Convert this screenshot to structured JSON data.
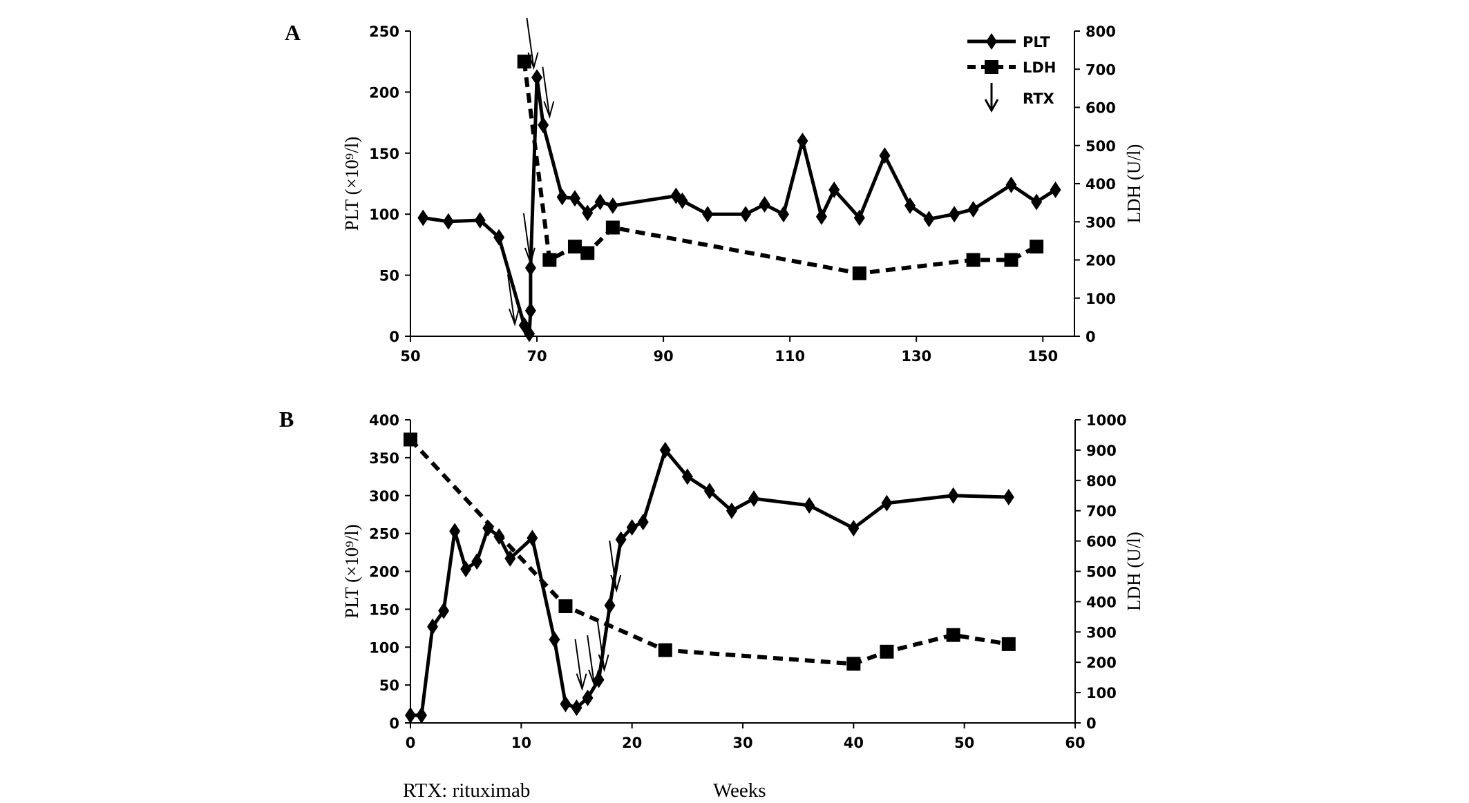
{
  "chart_data": [
    {
      "type": "line",
      "panel_label": "A",
      "ylabel": "PLT (×10⁹/l)",
      "y2label": "LDH (U/l)",
      "xlim": [
        50,
        155
      ],
      "xticks": [
        50,
        70,
        90,
        110,
        130,
        150
      ],
      "ylim": [
        0,
        250
      ],
      "yticks": [
        0,
        50,
        100,
        150,
        200,
        250
      ],
      "y2lim": [
        0,
        800
      ],
      "y2ticks": [
        0,
        100,
        200,
        300,
        400,
        500,
        600,
        700,
        800
      ],
      "legend": {
        "position": "top-right",
        "entries": [
          "PLT",
          "LDH",
          "RTX"
        ]
      },
      "series": [
        {
          "name": "PLT",
          "axis": "left",
          "style": "solid-diamond",
          "x": [
            52,
            56,
            61,
            64,
            68,
            68.8,
            69,
            69,
            70,
            71,
            74,
            76,
            78,
            80,
            82,
            92,
            93,
            97,
            103,
            106,
            109,
            112,
            115,
            117,
            121,
            125,
            129,
            132,
            136,
            139,
            145,
            149,
            152
          ],
          "y": [
            97,
            94,
            95,
            81,
            9,
            2,
            21,
            56,
            212,
            173,
            114,
            113,
            101,
            110,
            107,
            115,
            111,
            100,
            100,
            108,
            100,
            160,
            98,
            120,
            97,
            148,
            107,
            96,
            100,
            104,
            124,
            110,
            120
          ]
        },
        {
          "name": "LDH",
          "axis": "right",
          "style": "dashed-square",
          "x": [
            68,
            72,
            76,
            78,
            82,
            121,
            139,
            145,
            149
          ],
          "y": [
            720,
            200,
            235,
            218,
            285,
            165,
            200,
            200,
            235
          ]
        }
      ],
      "rtx_arrows": [
        {
          "x": 66.5,
          "y": 10
        },
        {
          "x": 69.5,
          "y": 220
        },
        {
          "x": 69,
          "y": 60
        },
        {
          "x": 72,
          "y": 180
        }
      ]
    },
    {
      "type": "line",
      "panel_label": "B",
      "ylabel": "PLT (×10⁹/l)",
      "y2label": "LDH (U/l)",
      "xlabel": "Weeks",
      "footnote": "RTX: rituximab",
      "xlim": [
        0,
        60
      ],
      "xticks": [
        0,
        10,
        20,
        30,
        40,
        50,
        60
      ],
      "ylim": [
        0,
        400
      ],
      "yticks": [
        0,
        50,
        100,
        150,
        200,
        250,
        300,
        350,
        400
      ],
      "y2lim": [
        0,
        1000
      ],
      "y2ticks": [
        0,
        100,
        200,
        300,
        400,
        500,
        600,
        700,
        800,
        900,
        1000
      ],
      "series": [
        {
          "name": "PLT",
          "axis": "left",
          "style": "solid-diamond",
          "x": [
            0,
            1,
            2,
            3,
            4,
            5,
            6,
            7,
            8,
            9,
            11,
            13,
            14,
            15,
            16,
            17,
            18,
            19,
            20,
            21,
            23,
            25,
            27,
            29,
            31,
            36,
            40,
            43,
            49,
            54
          ],
          "y": [
            10,
            10,
            127,
            148,
            253,
            203,
            213,
            257,
            246,
            217,
            244,
            110,
            25,
            20,
            33,
            57,
            155,
            242,
            258,
            265,
            360,
            325,
            306,
            280,
            296,
            287,
            257,
            290,
            300,
            298
          ]
        },
        {
          "name": "LDH",
          "axis": "right",
          "style": "dashed-square",
          "x": [
            0,
            14,
            23,
            40,
            43,
            49,
            54
          ],
          "y": [
            935,
            385,
            240,
            195,
            235,
            290,
            260
          ]
        }
      ],
      "rtx_arrows": [
        {
          "x": 15.5,
          "y": 45
        },
        {
          "x": 16.6,
          "y": 50
        },
        {
          "x": 17.5,
          "y": 70
        },
        {
          "x": 18.6,
          "y": 175
        }
      ]
    }
  ]
}
